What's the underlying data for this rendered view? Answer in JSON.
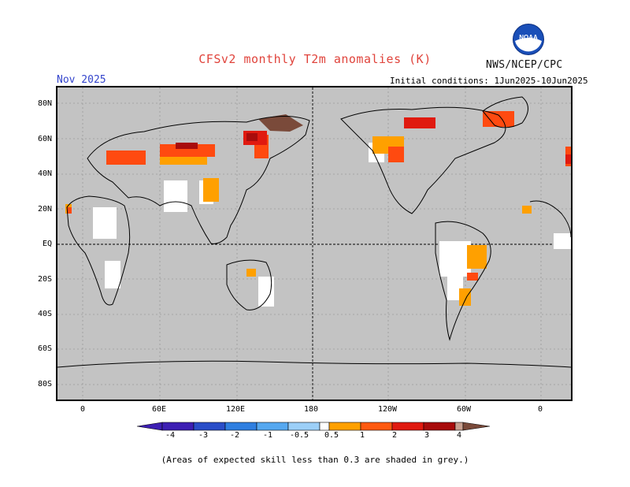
{
  "header": {
    "title": "CFSv2 monthly T2m anomalies (K)",
    "period": "Nov 2025",
    "initial_conditions": "Initial conditions: 1Jun2025-10Jun2025",
    "agency": "NWS/NCEP/CPC",
    "logo_text": "NOAA"
  },
  "map": {
    "background_color": "#c3c3c3",
    "lat_labels": [
      "80N",
      "60N",
      "40N",
      "20N",
      "EQ",
      "20S",
      "40S",
      "60S",
      "80S"
    ],
    "lon_labels": [
      "0",
      "60E",
      "120E",
      "180",
      "120W",
      "60W",
      "0"
    ]
  },
  "colorbar": {
    "tick_labels": [
      "-4",
      "-3",
      "-2",
      "-1",
      "-0.5",
      "0.5",
      "1",
      "2",
      "3",
      "4"
    ],
    "colors": [
      "#3d1fb3",
      "#2a4ec8",
      "#2f7fe0",
      "#56a8f0",
      "#9ccff8",
      "#ffffff",
      "#ffa000",
      "#ff5a10",
      "#e01a10",
      "#a80c0c",
      "#c8a090",
      "#7a4a3a"
    ]
  },
  "legend": {
    "colors": {
      "orange": "#ffa000",
      "red_orange": "#ff4a10",
      "red": "#e01a10",
      "dark_red": "#a80c0c",
      "brown": "#7a4a3a",
      "white": "#ffffff"
    }
  },
  "footer": {
    "note": "(Areas of expected skill less than 0.3 are shaded in grey.)"
  }
}
